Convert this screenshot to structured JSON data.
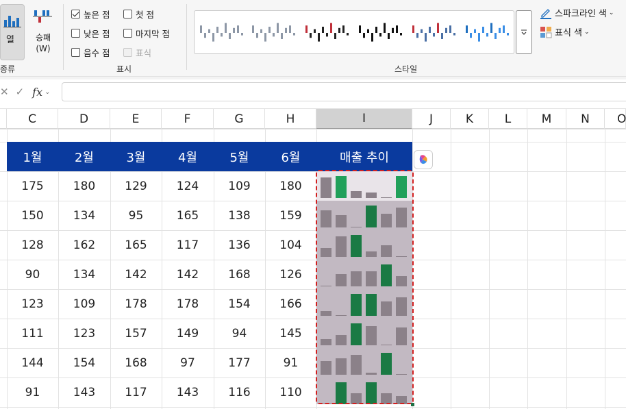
{
  "ribbon": {
    "type_group": {
      "column_button_label": "열",
      "winloss_button_label": "승패\n(W)",
      "group_label": "종류"
    },
    "show_group": {
      "checkboxes": [
        {
          "label": "높은 점",
          "checked": true,
          "disabled": false
        },
        {
          "label": "첫 점",
          "checked": false,
          "disabled": false
        },
        {
          "label": "낮은 점",
          "checked": false,
          "disabled": false
        },
        {
          "label": "마지막 점",
          "checked": false,
          "disabled": false
        },
        {
          "label": "음수 점",
          "checked": false,
          "disabled": false
        },
        {
          "label": "표식",
          "checked": false,
          "disabled": true
        }
      ],
      "group_label": "표시"
    },
    "style_group": {
      "group_label": "스타일",
      "more_icon": "chevron-down-icon",
      "style_accents": [
        "#8d97a6",
        "#8d97a6",
        "#c0303a",
        "#000000",
        "#c0303a",
        "#1f6fbf"
      ]
    },
    "right_buttons": [
      {
        "label": "스파크라인 색",
        "icon": "pen-color-icon"
      },
      {
        "label": "표식 색",
        "icon": "marker-color-icon"
      }
    ]
  },
  "formula_bar": {
    "cancel_icon": "close-icon",
    "enter_icon": "check-icon",
    "fx_label": "fx",
    "value": ""
  },
  "columns": [
    "C",
    "D",
    "E",
    "F",
    "G",
    "H",
    "I",
    "J",
    "K",
    "L",
    "M",
    "N",
    "O"
  ],
  "selected_column": "I",
  "table": {
    "header": [
      "1월",
      "2월",
      "3월",
      "4월",
      "5월",
      "6월",
      "매출 추이"
    ],
    "rows": [
      [
        175,
        180,
        129,
        124,
        109,
        180
      ],
      [
        150,
        134,
        95,
        165,
        138,
        159
      ],
      [
        128,
        162,
        165,
        117,
        136,
        104
      ],
      [
        90,
        134,
        142,
        142,
        168,
        126
      ],
      [
        123,
        109,
        178,
        178,
        154,
        166
      ],
      [
        111,
        123,
        157,
        149,
        94,
        145
      ],
      [
        144,
        154,
        168,
        97,
        177,
        91
      ],
      [
        91,
        143,
        117,
        143,
        116,
        110
      ]
    ]
  },
  "colors": {
    "header_fill": "#0a3a9e",
    "header_text": "#ffffff",
    "sparkline_bar": "#8b8189",
    "sparkline_high": "#1a7a44",
    "sparkline_high_first_row": "#21a05a",
    "sparkline_background": "#c2b9c2",
    "selection_border": "#d32020"
  },
  "copilot_icon": "copilot-icon"
}
